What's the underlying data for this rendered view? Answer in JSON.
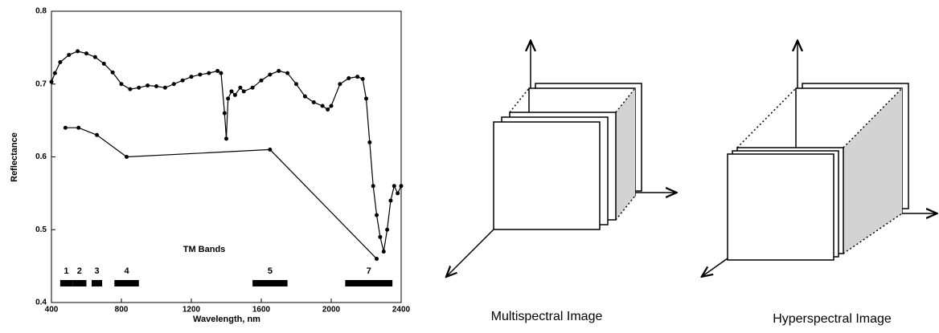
{
  "chart_data": {
    "type": "line",
    "xlabel": "Wavelength, nm",
    "ylabel": "Reflectance",
    "xlim": [
      400,
      2400
    ],
    "xticks": [
      400,
      800,
      1200,
      1600,
      2000,
      2400
    ],
    "ylim": [
      0.4,
      0.8
    ],
    "yticks": [
      0.4,
      0.5,
      0.6,
      0.7,
      0.8
    ],
    "series": [
      {
        "color": "#000000",
        "marker": "circle",
        "x": [
          400,
          420,
          450,
          500,
          550,
          600,
          650,
          700,
          750,
          800,
          850,
          900,
          950,
          1000,
          1050,
          1100,
          1150,
          1200,
          1250,
          1300,
          1350,
          1370,
          1390,
          1400,
          1410,
          1430,
          1450,
          1480,
          1500,
          1550,
          1600,
          1650,
          1700,
          1750,
          1800,
          1850,
          1900,
          1950,
          1980,
          2000,
          2050,
          2100,
          2150,
          2180,
          2200,
          2220,
          2240,
          2260,
          2280,
          2300,
          2320,
          2340,
          2360,
          2380,
          2400
        ],
        "values": [
          0.703,
          0.715,
          0.73,
          0.74,
          0.745,
          0.742,
          0.737,
          0.728,
          0.716,
          0.7,
          0.693,
          0.695,
          0.698,
          0.697,
          0.695,
          0.7,
          0.705,
          0.71,
          0.713,
          0.715,
          0.718,
          0.715,
          0.66,
          0.625,
          0.68,
          0.69,
          0.685,
          0.695,
          0.69,
          0.695,
          0.705,
          0.713,
          0.718,
          0.715,
          0.7,
          0.683,
          0.675,
          0.67,
          0.665,
          0.67,
          0.7,
          0.708,
          0.71,
          0.707,
          0.68,
          0.62,
          0.56,
          0.52,
          0.49,
          0.47,
          0.5,
          0.54,
          0.56,
          0.55,
          0.56
        ]
      },
      {
        "color": "#000000",
        "marker": "circle",
        "x": [
          480,
          555,
          660,
          830,
          1650,
          2260
        ],
        "values": [
          0.64,
          0.64,
          0.63,
          0.6,
          0.61,
          0.46
        ]
      }
    ],
    "annotation": "TM Bands",
    "bands": [
      {
        "label": "1",
        "range": [
          450,
          520
        ]
      },
      {
        "label": "2",
        "range": [
          520,
          600
        ]
      },
      {
        "label": "3",
        "range": [
          630,
          690
        ]
      },
      {
        "label": "4",
        "range": [
          760,
          900
        ]
      },
      {
        "label": "5",
        "range": [
          1550,
          1750
        ]
      },
      {
        "label": "7",
        "range": [
          2080,
          2350
        ]
      }
    ]
  },
  "diagrams": [
    {
      "label": "Multispectral Image"
    },
    {
      "label": "Hyperspectral Image"
    }
  ]
}
